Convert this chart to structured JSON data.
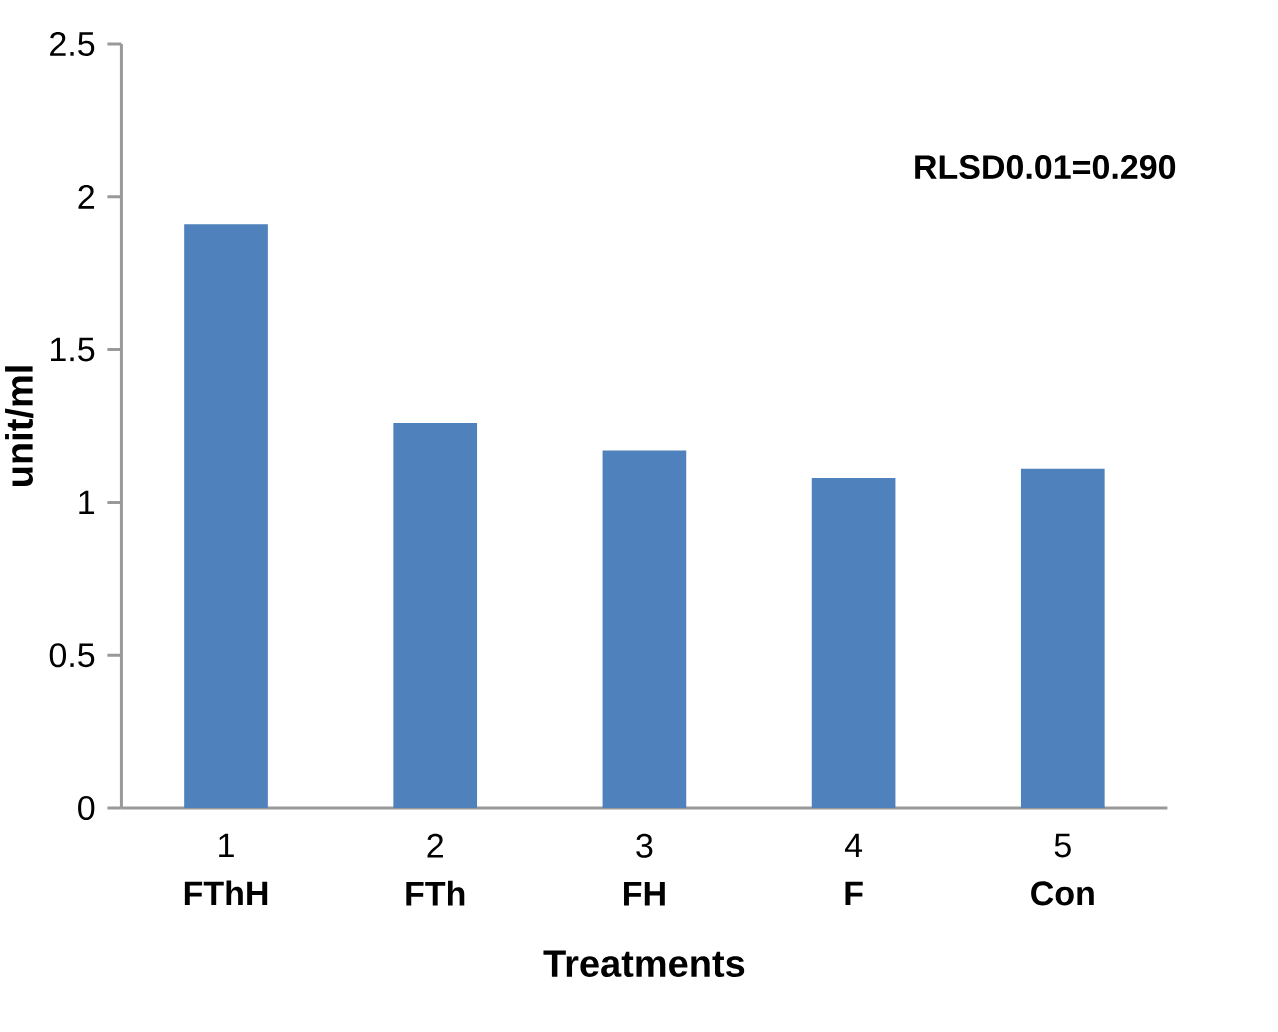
{
  "chart_data": {
    "type": "bar",
    "xlabel": "Treatments",
    "ylabel": "unit/ml",
    "categories": [
      "1\n**FThH**",
      "2\n**FTh**",
      "3\n**FH**",
      "4\n**F**",
      "5\n**Con**"
    ],
    "values": [
      1.91,
      1.26,
      1.17,
      1.08,
      1.11
    ],
    "color": "#4f81bd",
    "ylim": [
      0,
      2.5
    ],
    "yticks": [
      0,
      0.5,
      1,
      1.5,
      2,
      2.5
    ],
    "annotations": [
      "RLSD0.01=0.290"
    ]
  }
}
